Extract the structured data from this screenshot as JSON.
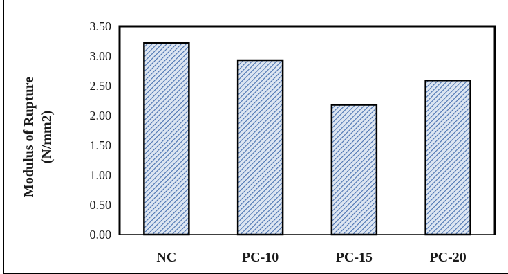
{
  "chart_data": {
    "type": "bar",
    "categories": [
      "NC",
      "PC-10",
      "PC-15",
      "PC-20"
    ],
    "values": [
      3.22,
      2.93,
      2.18,
      2.59
    ],
    "title": "",
    "xlabel": "",
    "ylabel_lines": [
      "Modulus of Rupture",
      "(N/mm2)"
    ],
    "ylim": [
      0,
      3.5
    ],
    "yticks": [
      "0.00",
      "0.50",
      "1.00",
      "1.50",
      "2.00",
      "2.50",
      "3.00",
      "3.50"
    ],
    "grid": false,
    "legend": "none",
    "bar_pattern": "diagonal-hatch",
    "colors": {
      "bar_fill_base": "#dde6f2",
      "bar_hatch": "#4a72b0",
      "bar_outline": "#000000",
      "axis": "#000000",
      "plot_frame": "#000000"
    }
  }
}
